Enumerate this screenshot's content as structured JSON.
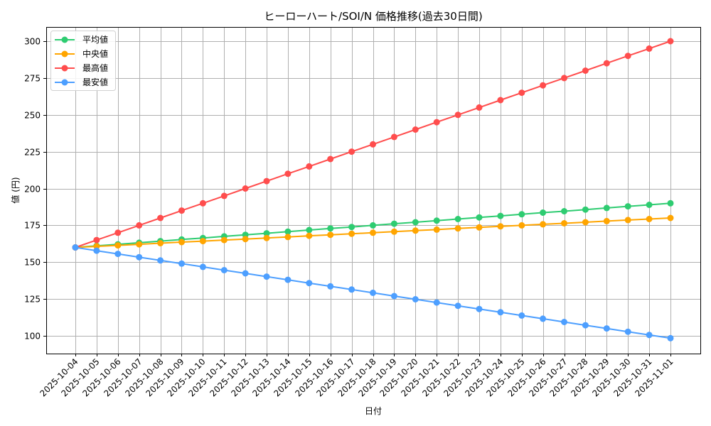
{
  "chart_data": {
    "type": "line",
    "title": "ヒーローハート/SOI/N 価格推移(過去30日間)",
    "xlabel": "日付",
    "ylabel": "値 (円)",
    "ylim": [
      88,
      310
    ],
    "yticks": [
      100,
      125,
      150,
      175,
      200,
      225,
      250,
      275,
      300
    ],
    "grid": true,
    "legend_position": "upper left",
    "categories": [
      "2025-10-04",
      "2025-10-05",
      "2025-10-06",
      "2025-10-07",
      "2025-10-08",
      "2025-10-09",
      "2025-10-10",
      "2025-10-11",
      "2025-10-12",
      "2025-10-13",
      "2025-10-14",
      "2025-10-15",
      "2025-10-16",
      "2025-10-17",
      "2025-10-18",
      "2025-10-19",
      "2025-10-20",
      "2025-10-21",
      "2025-10-22",
      "2025-10-23",
      "2025-10-24",
      "2025-10-25",
      "2025-10-26",
      "2025-10-27",
      "2025-10-28",
      "2025-10-29",
      "2025-10-30",
      "2025-10-31",
      "2025-11-01"
    ],
    "series": [
      {
        "name": "平均値",
        "color": "#2ecc71",
        "values": [
          160,
          161.1,
          162.1,
          163.2,
          164.3,
          165.4,
          166.4,
          167.5,
          168.6,
          169.6,
          170.7,
          171.8,
          172.9,
          173.9,
          175,
          176.1,
          177.1,
          178.2,
          179.3,
          180.4,
          181.4,
          182.5,
          183.6,
          184.6,
          185.7,
          186.8,
          187.9,
          188.9,
          190
        ]
      },
      {
        "name": "中央値",
        "color": "#ffa500",
        "values": [
          160,
          160.7,
          161.4,
          162.1,
          162.9,
          163.6,
          164.3,
          165,
          165.7,
          166.4,
          167.1,
          167.9,
          168.6,
          169.3,
          170,
          170.7,
          171.4,
          172.1,
          172.9,
          173.6,
          174.3,
          175,
          175.7,
          176.4,
          177.1,
          177.9,
          178.6,
          179.3,
          180
        ]
      },
      {
        "name": "最高値",
        "color": "#ff4d4d",
        "values": [
          160,
          165,
          170,
          175,
          180,
          185,
          190,
          195,
          200,
          205,
          210,
          215,
          220,
          225,
          230,
          235,
          240,
          245,
          250,
          255,
          260,
          265,
          270,
          275,
          280,
          285,
          290,
          295,
          300
        ]
      },
      {
        "name": "最安値",
        "color": "#4d9fff",
        "values": [
          160,
          157.8,
          155.6,
          153.4,
          151.2,
          149,
          146.8,
          144.6,
          142.4,
          140.2,
          138,
          135.8,
          133.6,
          131.4,
          129.2,
          127,
          124.8,
          122.6,
          120.4,
          118.2,
          116,
          113.8,
          111.6,
          109.4,
          107.2,
          105,
          102.8,
          100.6,
          98.4
        ]
      }
    ]
  }
}
